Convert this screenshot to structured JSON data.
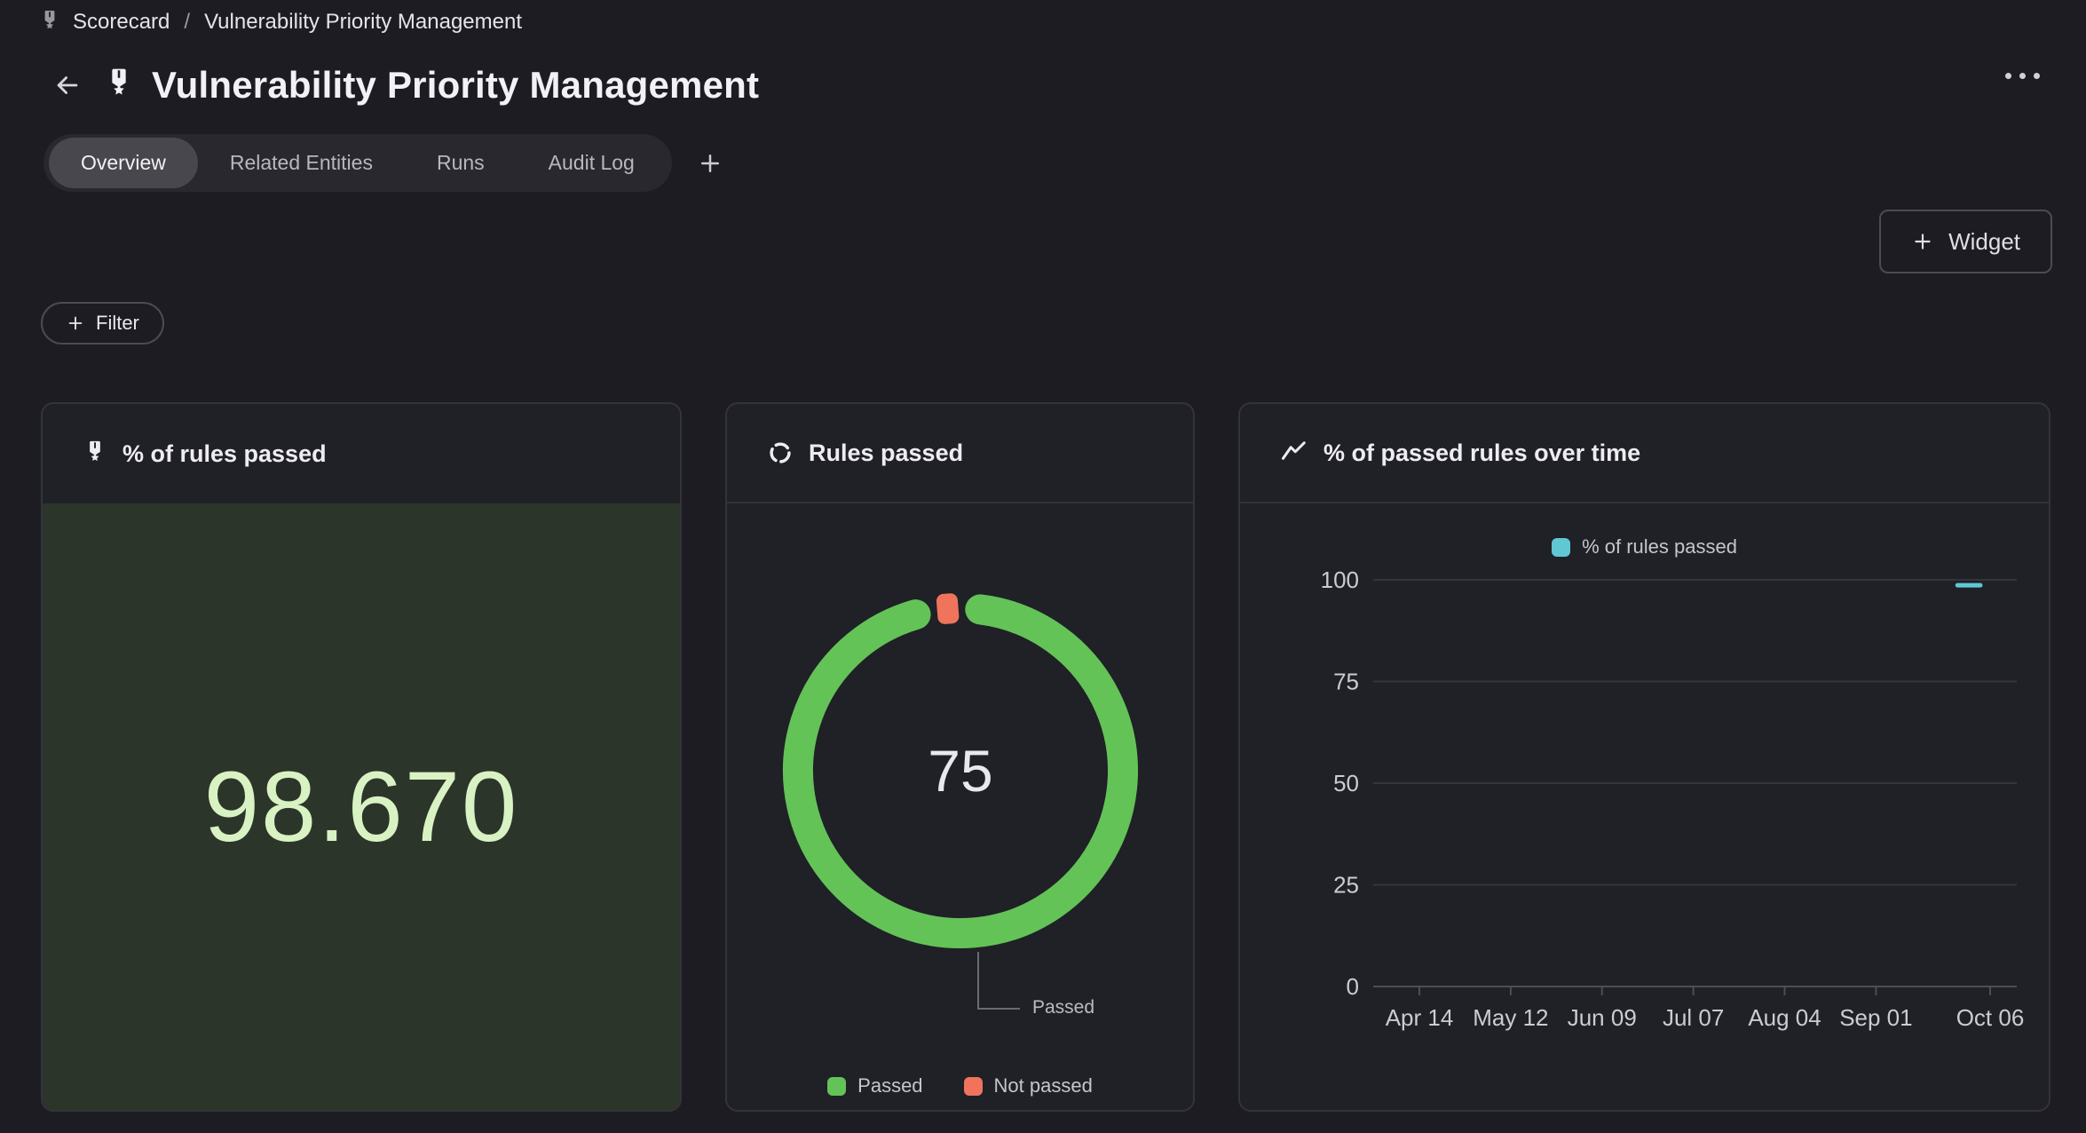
{
  "breadcrumb": {
    "separator": "/",
    "items": [
      "Scorecard",
      "Vulnerability Priority Management"
    ]
  },
  "header": {
    "title": "Vulnerability Priority Management"
  },
  "tabs": {
    "items": [
      {
        "label": "Overview",
        "active": true
      },
      {
        "label": "Related Entities",
        "active": false
      },
      {
        "label": "Runs",
        "active": false
      },
      {
        "label": "Audit Log",
        "active": false
      }
    ]
  },
  "toolbar": {
    "widget_button": "Widget",
    "filter_button": "Filter"
  },
  "chart_data": [
    {
      "type": "number",
      "title": "% of rules passed",
      "value": 98.67,
      "display": "98.670",
      "bg": "#2C352A",
      "value_color": "#D9F2C3"
    },
    {
      "type": "donut",
      "title": "Rules passed",
      "center_label": "75",
      "callout": "Passed",
      "slices": [
        {
          "label": "Passed",
          "value": 75,
          "color": "#63C357"
        },
        {
          "label": "Not passed",
          "value": 1,
          "color": "#F0745C"
        }
      ]
    },
    {
      "type": "line",
      "title": "% of passed rules over time",
      "ylim": [
        0,
        100
      ],
      "y_ticks": [
        0,
        25,
        50,
        75,
        100
      ],
      "grid": "horizontal",
      "legend_position": "top",
      "x_ticks": [
        {
          "label": "Apr 14",
          "day": 0
        },
        {
          "label": "May 12",
          "day": 28
        },
        {
          "label": "Jun 09",
          "day": 56
        },
        {
          "label": "Jul 07",
          "day": 84
        },
        {
          "label": "Aug 04",
          "day": 112
        },
        {
          "label": "Sep 01",
          "day": 140
        },
        {
          "label": "Oct 06",
          "day": 175
        }
      ],
      "series": [
        {
          "name": "% of rules passed",
          "color": "#5FC8D4",
          "points": [
            {
              "day": 165,
              "value": 98.67
            },
            {
              "day": 172,
              "value": 98.67
            }
          ]
        }
      ]
    }
  ]
}
